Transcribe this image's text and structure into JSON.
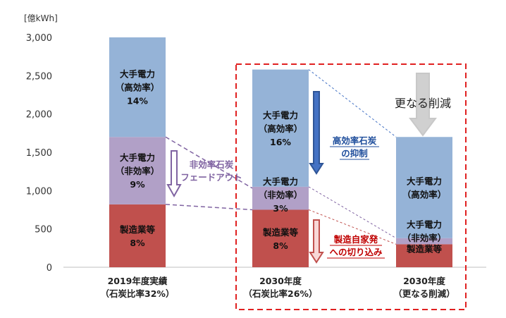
{
  "chart_data": {
    "type": "bar",
    "stacked": true,
    "y_unit": "[億kWh]",
    "ylim": [
      0,
      3000
    ],
    "yticks": [
      "0",
      "500",
      "1,000",
      "1,500",
      "2,000",
      "2,500",
      "3,000"
    ],
    "ytick_values": [
      0,
      500,
      1000,
      1500,
      2000,
      2500,
      3000
    ],
    "categories": [
      {
        "line1": "2019年度実績",
        "line2": "（石炭比率32%）"
      },
      {
        "line1": "2030年度",
        "line2": "（石炭比率26%）"
      },
      {
        "line1": "2030年度",
        "line2": "（更なる削減）"
      }
    ],
    "series": [
      {
        "key": "manufacturing",
        "color": "#c0504d",
        "values": [
          820,
          750,
          300
        ],
        "labels": [
          [
            "製造業等",
            "8%"
          ],
          [
            "製造業等",
            "8%"
          ],
          [
            "製造業等"
          ]
        ]
      },
      {
        "key": "inefficient",
        "color": "#b1a0c7",
        "values": [
          880,
          300,
          80
        ],
        "labels": [
          [
            "大手電力",
            "（非効率）",
            "9%"
          ],
          [
            "大手電力",
            "（非効率）",
            "3%"
          ],
          [
            "大手電力",
            "（非効率）"
          ]
        ]
      },
      {
        "key": "efficient",
        "color": "#95b3d7",
        "values": [
          1300,
          1530,
          1320
        ],
        "labels": [
          [
            "大手電力",
            "（高効率）",
            "14%"
          ],
          [
            "大手電力",
            "（高効率）",
            "16%"
          ],
          [
            "大手電力",
            "（高効率）"
          ]
        ]
      }
    ],
    "annotations": {
      "fadeout": [
        "非効率石炭",
        "フェードアウト"
      ],
      "efficient_restraint": [
        "高効率石炭",
        "の抑制"
      ],
      "self_generation": [
        "製造自家発",
        "への切り込み"
      ],
      "further_reduction": "更なる削減"
    },
    "colors": {
      "fadeout_arrow": "#8064a2",
      "restraint_arrow": "#4472c4",
      "selfgen_arrow": "#c0504d",
      "reduction_arrow": "#d0d0d0",
      "highlight_box": "#e02020"
    }
  }
}
